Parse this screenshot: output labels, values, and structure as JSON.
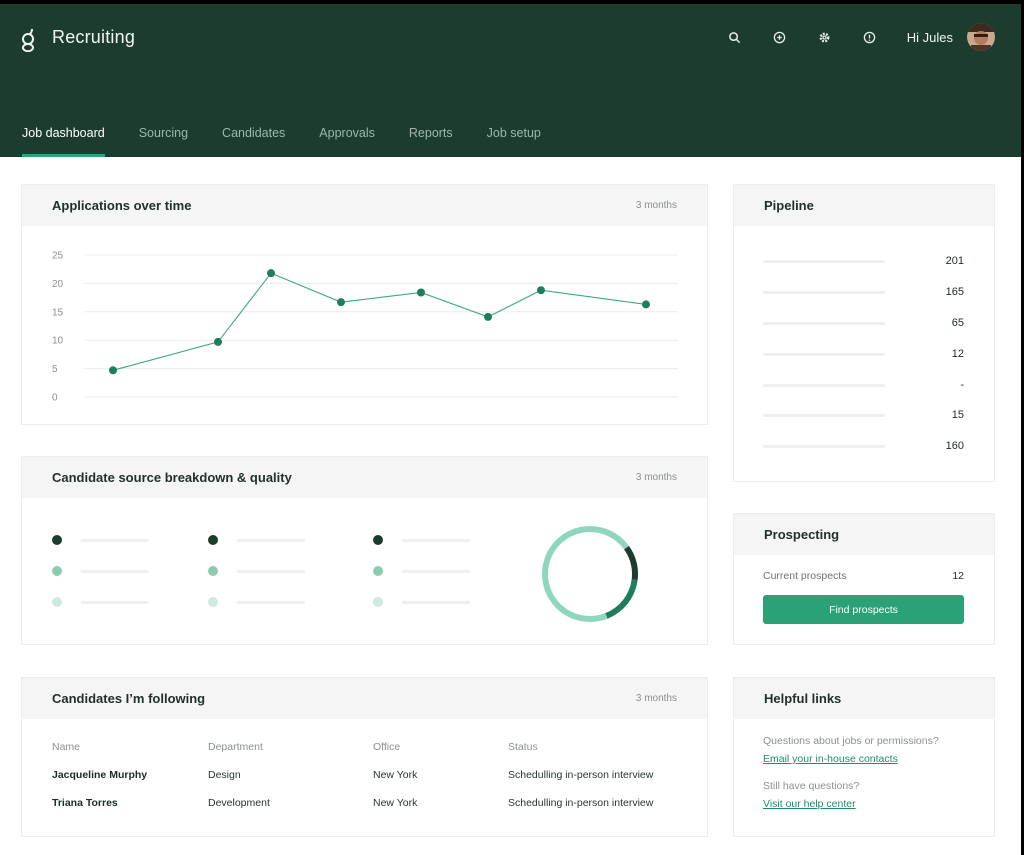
{
  "header": {
    "title": "Recruiting",
    "greeting": "Hi Jules",
    "icons": [
      "search-icon",
      "plus-circle-icon",
      "settings-icon",
      "help-icon"
    ]
  },
  "tabs": [
    {
      "label": "Job dashboard",
      "active": true
    },
    {
      "label": "Sourcing",
      "active": false
    },
    {
      "label": "Candidates",
      "active": false
    },
    {
      "label": "Approvals",
      "active": false
    },
    {
      "label": "Reports",
      "active": false
    },
    {
      "label": "Job setup",
      "active": false
    }
  ],
  "applications": {
    "title": "Applications over time",
    "period": "3 months"
  },
  "chart_data": {
    "type": "line",
    "title": "Applications over time",
    "x": [
      1,
      2,
      3,
      4,
      5,
      6,
      7,
      8
    ],
    "y": [
      4.7,
      9.7,
      21.8,
      16.7,
      18.4,
      14.1,
      18.8,
      16.3
    ],
    "ylim": [
      0,
      25
    ],
    "yticks": [
      "25",
      "20",
      "15",
      "10",
      "5",
      "0"
    ],
    "grid": true,
    "color": "#1f7d5c"
  },
  "pipeline": {
    "title": "Pipeline",
    "values": [
      "201",
      "165",
      "65",
      "12",
      "-",
      "15",
      "160"
    ]
  },
  "source": {
    "title": "Candidate source breakdown & quality",
    "period": "3 months",
    "dot_colors": [
      "#1c3d2e",
      "#8dcbb0",
      "#cdeadc"
    ],
    "donut": {
      "dark": 0.12,
      "medium": 0.17,
      "light": 0.71
    },
    "donut_colors": [
      "#1c3d2e",
      "#1f7d5c",
      "#8fd7bc"
    ]
  },
  "prospecting": {
    "title": "Prospecting",
    "label": "Current prospects",
    "value": "12",
    "button": "Find prospects"
  },
  "following": {
    "title": "Candidates I’m following",
    "period": "3 months",
    "headers": [
      "Name",
      "Department",
      "Office",
      "Status"
    ],
    "rows": [
      [
        "Jacqueline Murphy",
        "Design",
        "New York",
        "Schedulling in-person interview"
      ],
      [
        "Triana Torres",
        "Development",
        "New York",
        "Schedulling in-person interview"
      ]
    ]
  },
  "help": {
    "title": "Helpful links",
    "q1": "Questions about jobs or permissions?",
    "link1": "Email your in-house contacts",
    "q2": "Still have questions?",
    "link2": "Visit our help center"
  }
}
